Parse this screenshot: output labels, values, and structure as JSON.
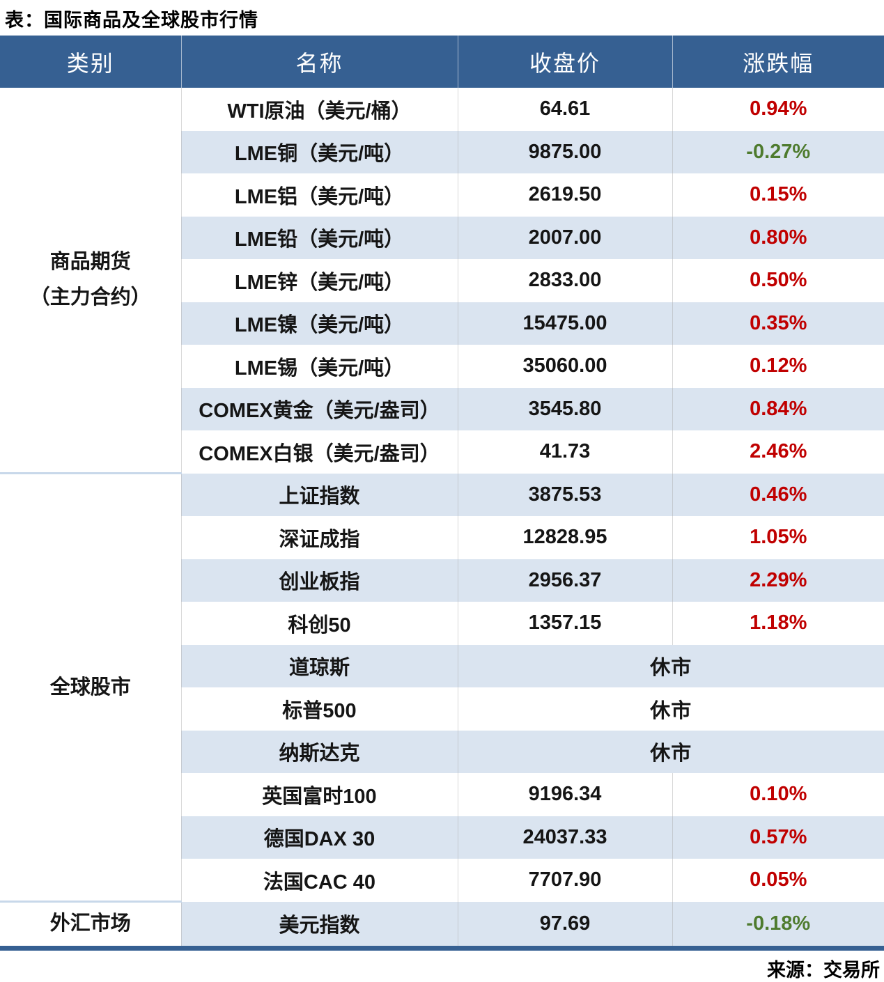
{
  "title": "表：国际商品及全球股市行情",
  "source_label": "来源：交易所",
  "columns": [
    "类别",
    "名称",
    "收盘价",
    "涨跌幅"
  ],
  "colors": {
    "header_bg": "#366092",
    "header_text": "#ffffff",
    "alt_row_bg": "#dae4f0",
    "up_red": "#c00000",
    "down_green": "#4e7b2e",
    "bottom_bar": "#366092",
    "category_separator": "#c8d8ea"
  },
  "categories": [
    {
      "line1": "商品期货",
      "line2": "（主力合约）",
      "rowspan": 9
    },
    {
      "label": "全球股市",
      "rowspan": 10
    },
    {
      "label": "外汇市场",
      "rowspan": 1
    }
  ],
  "rows": [
    {
      "name": "WTI原油（美元/桶）",
      "close": "64.61",
      "pct": "0.94%",
      "direction": "up"
    },
    {
      "name": "LME铜（美元/吨）",
      "close": "9875.00",
      "pct": "-0.27%",
      "direction": "down"
    },
    {
      "name": "LME铝（美元/吨）",
      "close": "2619.50",
      "pct": "0.15%",
      "direction": "up"
    },
    {
      "name": "LME铅（美元/吨）",
      "close": "2007.00",
      "pct": "0.80%",
      "direction": "up"
    },
    {
      "name": "LME锌（美元/吨）",
      "close": "2833.00",
      "pct": "0.50%",
      "direction": "up"
    },
    {
      "name": "LME镍（美元/吨）",
      "close": "15475.00",
      "pct": "0.35%",
      "direction": "up"
    },
    {
      "name": "LME锡（美元/吨）",
      "close": "35060.00",
      "pct": "0.12%",
      "direction": "up"
    },
    {
      "name": "COMEX黄金（美元/盎司）",
      "close": "3545.80",
      "pct": "0.84%",
      "direction": "up"
    },
    {
      "name": "COMEX白银（美元/盎司）",
      "close": "41.73",
      "pct": "2.46%",
      "direction": "up"
    },
    {
      "name": "上证指数",
      "close": "3875.53",
      "pct": "0.46%",
      "direction": "up"
    },
    {
      "name": "深证成指",
      "close": "12828.95",
      "pct": "1.05%",
      "direction": "up"
    },
    {
      "name": "创业板指",
      "close": "2956.37",
      "pct": "2.29%",
      "direction": "up"
    },
    {
      "name": "科创50",
      "close": "1357.15",
      "pct": "1.18%",
      "direction": "up"
    },
    {
      "name": "道琼斯",
      "status": "休市"
    },
    {
      "name": "标普500",
      "status": "休市"
    },
    {
      "name": "纳斯达克",
      "status": "休市"
    },
    {
      "name": "英国富时100",
      "close": "9196.34",
      "pct": "0.10%",
      "direction": "up"
    },
    {
      "name": "德国DAX 30",
      "close": "24037.33",
      "pct": "0.57%",
      "direction": "up"
    },
    {
      "name": "法国CAC 40",
      "close": "7707.90",
      "pct": "0.05%",
      "direction": "up"
    },
    {
      "name": "美元指数",
      "close": "97.69",
      "pct": "-0.18%",
      "direction": "down"
    }
  ],
  "chart_data": {
    "type": "table",
    "title": "表：国际商品及全球股市行情",
    "columns": [
      "类别",
      "名称",
      "收盘价",
      "涨跌幅"
    ],
    "rows": [
      [
        "商品期货（主力合约）",
        "WTI原油（美元/桶）",
        64.61,
        "0.94%"
      ],
      [
        "商品期货（主力合约）",
        "LME铜（美元/吨）",
        9875.0,
        "-0.27%"
      ],
      [
        "商品期货（主力合约）",
        "LME铝（美元/吨）",
        2619.5,
        "0.15%"
      ],
      [
        "商品期货（主力合约）",
        "LME铅（美元/吨）",
        2007.0,
        "0.80%"
      ],
      [
        "商品期货（主力合约）",
        "LME锌（美元/吨）",
        2833.0,
        "0.50%"
      ],
      [
        "商品期货（主力合约）",
        "LME镍（美元/吨）",
        15475.0,
        "0.35%"
      ],
      [
        "商品期货（主力合约）",
        "LME锡（美元/吨）",
        35060.0,
        "0.12%"
      ],
      [
        "商品期货（主力合约）",
        "COMEX黄金（美元/盎司）",
        3545.8,
        "0.84%"
      ],
      [
        "商品期货（主力合约）",
        "COMEX白银（美元/盎司）",
        41.73,
        "2.46%"
      ],
      [
        "全球股市",
        "上证指数",
        3875.53,
        "0.46%"
      ],
      [
        "全球股市",
        "深证成指",
        12828.95,
        "1.05%"
      ],
      [
        "全球股市",
        "创业板指",
        2956.37,
        "2.29%"
      ],
      [
        "全球股市",
        "科创50",
        1357.15,
        "1.18%"
      ],
      [
        "全球股市",
        "道琼斯",
        "休市",
        "休市"
      ],
      [
        "全球股市",
        "标普500",
        "休市",
        "休市"
      ],
      [
        "全球股市",
        "纳斯达克",
        "休市",
        "休市"
      ],
      [
        "全球股市",
        "英国富时100",
        9196.34,
        "0.10%"
      ],
      [
        "全球股市",
        "德国DAX 30",
        24037.33,
        "0.57%"
      ],
      [
        "全球股市",
        "法国CAC 40",
        7707.9,
        "0.05%"
      ],
      [
        "外汇市场",
        "美元指数",
        97.69,
        "-0.18%"
      ]
    ],
    "source": "来源：交易所",
    "color_convention": "red = up, green = down"
  }
}
